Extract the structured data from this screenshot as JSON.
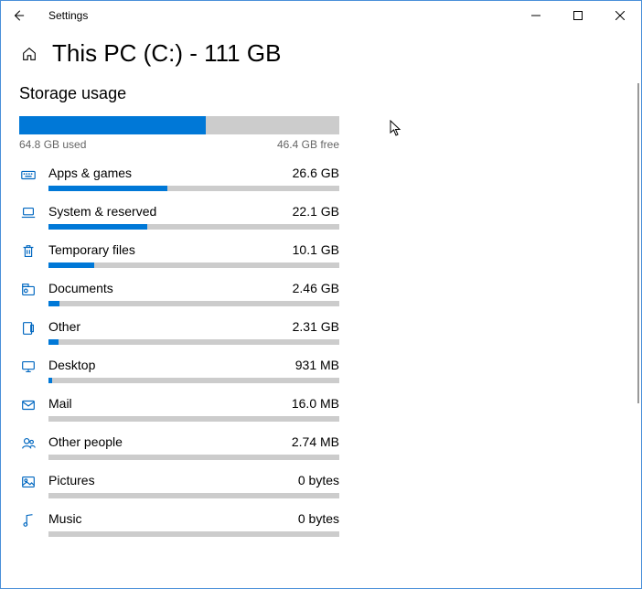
{
  "window": {
    "title": "Settings"
  },
  "header": {
    "title": "This PC (C:) - 111 GB"
  },
  "storage": {
    "section_title": "Storage usage",
    "overall": {
      "used_label": "64.8 GB used",
      "free_label": "46.4 GB free",
      "pct": 58.4,
      "bar_color": "#0078d7",
      "bar_bg": "#cccccc"
    },
    "categories": [
      {
        "icon": "keyboard",
        "label": "Apps & games",
        "size": "26.6 GB",
        "pct": 41.0
      },
      {
        "icon": "laptop",
        "label": "System & reserved",
        "size": "22.1 GB",
        "pct": 34.1
      },
      {
        "icon": "trash",
        "label": "Temporary files",
        "size": "10.1 GB",
        "pct": 15.6
      },
      {
        "icon": "document",
        "label": "Documents",
        "size": "2.46 GB",
        "pct": 3.8
      },
      {
        "icon": "other",
        "label": "Other",
        "size": "2.31 GB",
        "pct": 3.6
      },
      {
        "icon": "desktop",
        "label": "Desktop",
        "size": "931 MB",
        "pct": 1.4
      },
      {
        "icon": "mail",
        "label": "Mail",
        "size": "16.0 MB",
        "pct": 0
      },
      {
        "icon": "people",
        "label": "Other people",
        "size": "2.74 MB",
        "pct": 0
      },
      {
        "icon": "pictures",
        "label": "Pictures",
        "size": "0 bytes",
        "pct": 0
      },
      {
        "icon": "music",
        "label": "Music",
        "size": "0 bytes",
        "pct": 0
      }
    ]
  },
  "colors": {
    "accent": "#0078d7",
    "icon": "#0067c0",
    "bar_bg": "#cccccc",
    "text": "#000000",
    "subtext": "#666666"
  }
}
